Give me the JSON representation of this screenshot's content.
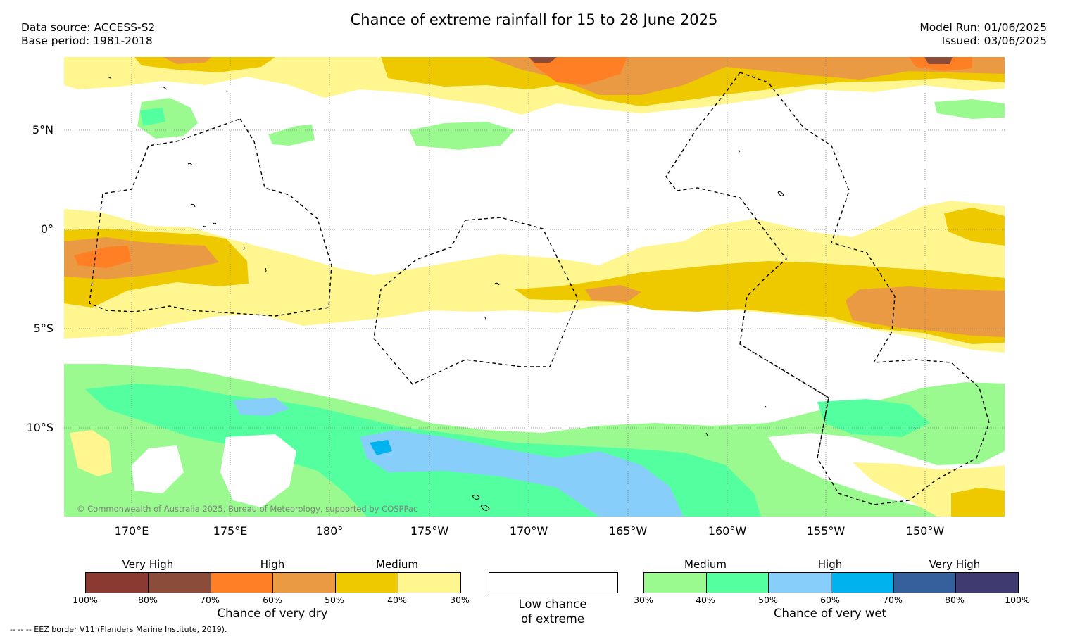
{
  "header": {
    "title": "Chance of extreme rainfall for 15 to 28 June 2025",
    "data_source": "Data source: ACCESS-S2",
    "base_period": "Base period: 1981-2018",
    "model_run": "Model Run: 01/06/2025",
    "issued": "Issued: 03/06/2025"
  },
  "map": {
    "lat_labels": [
      "5°N",
      "0°",
      "5°S",
      "10°S"
    ],
    "lon_labels": [
      "170°E",
      "175°E",
      "180°",
      "175°W",
      "170°W",
      "165°W",
      "160°W",
      "155°W",
      "150°W"
    ],
    "copyright": "© Commonwealth of Australia 2025, Bureau of Meteorology, supported by COSPPac",
    "colors": {
      "dry_30_40": "#fff68f",
      "dry_40_50": "#eec900",
      "dry_50_60": "#eb9a44",
      "dry_60_70": "#ff7f24",
      "dry_80_90": "#8b4c39",
      "wet_30_40": "#9afa8f",
      "wet_40_50": "#54ff9f",
      "wet_50_60": "#87cefa",
      "wet_60_70": "#00b2ee"
    }
  },
  "legend": {
    "dry": {
      "title": "Chance of very dry",
      "levels": [
        "Very High",
        "High",
        "Medium"
      ],
      "ticks": [
        "100%",
        "80%",
        "70%",
        "60%",
        "50%",
        "40%",
        "30%"
      ],
      "colors": [
        "#8b3a32",
        "#8b4c39",
        "#ff7f24",
        "#eb9a44",
        "#eec900",
        "#fff68f"
      ]
    },
    "none": {
      "title_line1": "Low chance",
      "title_line2": "of extreme"
    },
    "wet": {
      "title": "Chance of very wet",
      "levels": [
        "Medium",
        "High",
        "Very High"
      ],
      "ticks": [
        "30%",
        "40%",
        "50%",
        "60%",
        "70%",
        "80%",
        "100%"
      ],
      "colors": [
        "#9afa8f",
        "#54ff9f",
        "#87cefa",
        "#00b2ee",
        "#36609c",
        "#3f3a70"
      ]
    }
  },
  "footer": {
    "eez_note": "--  --  -- EEZ border V11 (Flanders Marine Institute, 2019)."
  }
}
